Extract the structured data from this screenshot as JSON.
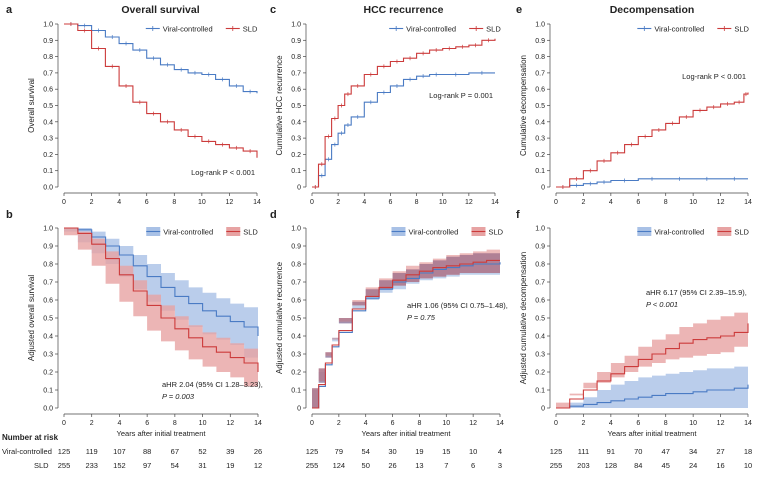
{
  "colors": {
    "viral": "#4a7bc4",
    "sld": "#cc3b3b",
    "viral_band": "#a9c1e6",
    "sld_band": "#e7a3a3",
    "overlap_band": "#8a5a7a"
  },
  "legend": {
    "viral": "Viral-controlled",
    "sld": "SLD"
  },
  "panels": {
    "a": {
      "letter": "a",
      "title": "Overall survival",
      "ylabel": "Overall survival",
      "stat": "Log-rank P < 0.001"
    },
    "c": {
      "letter": "c",
      "title": "HCC recurrence",
      "ylabel": "Cumulative HCC recurrence",
      "stat": "Log-rank P = 0.001"
    },
    "e": {
      "letter": "e",
      "title": "Decompensation",
      "ylabel": "Cumulative decompensation",
      "stat": "Log-rank P < 0.001"
    },
    "b": {
      "letter": "b",
      "ylabel": "Adjusted overall survival",
      "xlabel": "Years after initial treatment",
      "stat1": "aHR 2.04 (95% CI 1.28–3.23),",
      "stat2": "P = 0.003"
    },
    "d": {
      "letter": "d",
      "ylabel": "Adjusted cumulative recurrence",
      "xlabel": "Years after initial treatment",
      "stat1": "aHR 1.06 (95% CI 0.75–1.48),",
      "stat2": "P = 0.75"
    },
    "f": {
      "letter": "f",
      "ylabel": "Adjusted cumulative decompensation",
      "xlabel": "Years after initial treatment",
      "stat1": "aHR 6.17 (95% CI 2.39–15.9),",
      "stat2": "P < 0.001"
    }
  },
  "risk_table": {
    "title": "Number at risk",
    "row_labels": [
      "Viral-controlled",
      "SLD"
    ],
    "left": {
      "viral": [
        125,
        119,
        107,
        88,
        67,
        52,
        39,
        26
      ],
      "sld": [
        255,
        233,
        152,
        97,
        54,
        31,
        19,
        12
      ]
    },
    "middle": {
      "viral": [
        125,
        79,
        54,
        30,
        19,
        15,
        10,
        4
      ],
      "sld": [
        255,
        124,
        50,
        26,
        13,
        7,
        6,
        3
      ]
    },
    "right": {
      "viral": [
        125,
        111,
        91,
        70,
        47,
        34,
        27,
        18
      ],
      "sld": [
        255,
        203,
        128,
        84,
        45,
        24,
        16,
        10
      ]
    }
  },
  "chart_data": [
    {
      "panel": "a",
      "type": "line",
      "title": "Overall survival",
      "xlabel": "",
      "ylabel": "Overall survival",
      "xlim": [
        0,
        14
      ],
      "ylim": [
        0,
        1
      ],
      "x_ticks": [
        "0",
        "2",
        "4",
        "6",
        "8",
        "10",
        "12",
        "14"
      ],
      "y_ticks": [
        "0.0",
        "0.1",
        "0.2",
        "0.3",
        "0.4",
        "0.5",
        "0.6",
        "0.7",
        "0.8",
        "0.9",
        "1.0"
      ],
      "series": [
        {
          "name": "Viral-controlled",
          "x": [
            0,
            1,
            2,
            3,
            4,
            5,
            6,
            7,
            8,
            9,
            10,
            11,
            12,
            13,
            14
          ],
          "y": [
            1.0,
            0.99,
            0.96,
            0.92,
            0.88,
            0.84,
            0.79,
            0.75,
            0.72,
            0.7,
            0.69,
            0.66,
            0.62,
            0.585,
            0.575
          ]
        },
        {
          "name": "SLD",
          "x": [
            0,
            1,
            2,
            3,
            4,
            5,
            6,
            7,
            8,
            9,
            10,
            11,
            12,
            13,
            14
          ],
          "y": [
            1.0,
            0.96,
            0.85,
            0.74,
            0.62,
            0.52,
            0.45,
            0.4,
            0.35,
            0.31,
            0.28,
            0.26,
            0.24,
            0.22,
            0.18
          ]
        }
      ]
    },
    {
      "panel": "c",
      "type": "line",
      "title": "HCC recurrence",
      "xlabel": "",
      "ylabel": "Cumulative HCC recurrence",
      "xlim": [
        0,
        14
      ],
      "ylim": [
        0,
        1
      ],
      "x_ticks": [
        "0",
        "2",
        "4",
        "6",
        "8",
        "10",
        "12",
        "14"
      ],
      "y_ticks": [
        "0",
        "0.1",
        "0.2",
        "0.3",
        "0.4",
        "0.5",
        "0.6",
        "0.7",
        "0.8",
        "0.9",
        "1.0"
      ],
      "series": [
        {
          "name": "Viral-controlled",
          "x": [
            0,
            0.5,
            1,
            1.5,
            2,
            2.5,
            3,
            4,
            5,
            6,
            7,
            8,
            9,
            10,
            12,
            14
          ],
          "y": [
            0,
            0.07,
            0.17,
            0.26,
            0.33,
            0.38,
            0.43,
            0.52,
            0.58,
            0.62,
            0.66,
            0.68,
            0.69,
            0.69,
            0.7,
            0.7
          ]
        },
        {
          "name": "SLD",
          "x": [
            0,
            0.5,
            1,
            1.5,
            2,
            2.5,
            3,
            4,
            5,
            6,
            7,
            8,
            9,
            10,
            11,
            12,
            13,
            14
          ],
          "y": [
            0,
            0.14,
            0.31,
            0.42,
            0.5,
            0.57,
            0.62,
            0.69,
            0.74,
            0.77,
            0.79,
            0.82,
            0.84,
            0.85,
            0.86,
            0.87,
            0.9,
            0.91
          ]
        }
      ]
    },
    {
      "panel": "e",
      "type": "line",
      "title": "Decompensation",
      "xlabel": "",
      "ylabel": "Cumulative decompensation",
      "xlim": [
        0,
        14
      ],
      "ylim": [
        0,
        1
      ],
      "x_ticks": [
        "0",
        "2",
        "4",
        "6",
        "8",
        "10",
        "12",
        "14"
      ],
      "y_ticks": [
        "0",
        "0.1",
        "0.2",
        "0.3",
        "0.4",
        "0.5",
        "0.6",
        "0.7",
        "0.8",
        "0.9",
        "1.0"
      ],
      "series": [
        {
          "name": "Viral-controlled",
          "x": [
            0,
            1,
            2,
            3,
            4,
            6,
            8,
            10,
            12,
            14
          ],
          "y": [
            0,
            0.01,
            0.02,
            0.03,
            0.04,
            0.05,
            0.05,
            0.05,
            0.05,
            0.05
          ]
        },
        {
          "name": "SLD",
          "x": [
            0,
            1,
            2,
            3,
            4,
            5,
            6,
            7,
            8,
            9,
            10,
            11,
            12,
            13,
            13.7,
            14
          ],
          "y": [
            0,
            0.05,
            0.1,
            0.16,
            0.21,
            0.26,
            0.31,
            0.35,
            0.39,
            0.43,
            0.47,
            0.49,
            0.51,
            0.52,
            0.57,
            0.58
          ]
        }
      ]
    },
    {
      "panel": "b",
      "type": "area",
      "title": "",
      "xlabel": "Years after initial treatment",
      "ylabel": "Adjusted overall survival",
      "xlim": [
        0,
        14
      ],
      "ylim": [
        0,
        1
      ],
      "x_ticks": [
        "0",
        "2",
        "4",
        "6",
        "8",
        "10",
        "12",
        "14"
      ],
      "y_ticks": [
        "0.0",
        "0.1",
        "0.2",
        "0.3",
        "0.4",
        "0.5",
        "0.6",
        "0.7",
        "0.8",
        "0.9",
        "1.0"
      ],
      "series": [
        {
          "name": "Viral-controlled",
          "x": [
            0,
            1,
            2,
            3,
            4,
            5,
            6,
            7,
            8,
            9,
            10,
            11,
            12,
            13,
            14
          ],
          "y": [
            1.0,
            0.99,
            0.95,
            0.9,
            0.85,
            0.79,
            0.73,
            0.67,
            0.62,
            0.58,
            0.54,
            0.51,
            0.48,
            0.45,
            0.4
          ],
          "lower": [
            1.0,
            0.98,
            0.92,
            0.86,
            0.8,
            0.73,
            0.66,
            0.59,
            0.54,
            0.49,
            0.45,
            0.41,
            0.38,
            0.35,
            0.28
          ],
          "upper": [
            1.0,
            1.0,
            0.98,
            0.94,
            0.9,
            0.85,
            0.8,
            0.75,
            0.71,
            0.67,
            0.64,
            0.61,
            0.58,
            0.56,
            0.52
          ]
        },
        {
          "name": "SLD",
          "x": [
            0,
            1,
            2,
            3,
            4,
            5,
            6,
            7,
            8,
            9,
            10,
            11,
            12,
            13,
            14
          ],
          "y": [
            1.0,
            0.97,
            0.91,
            0.83,
            0.74,
            0.65,
            0.57,
            0.5,
            0.44,
            0.39,
            0.34,
            0.31,
            0.28,
            0.25,
            0.2
          ],
          "lower": [
            1.0,
            0.96,
            0.88,
            0.79,
            0.69,
            0.59,
            0.51,
            0.43,
            0.37,
            0.32,
            0.27,
            0.23,
            0.2,
            0.17,
            0.12
          ],
          "upper": [
            1.0,
            0.98,
            0.94,
            0.87,
            0.79,
            0.71,
            0.63,
            0.57,
            0.51,
            0.46,
            0.42,
            0.39,
            0.36,
            0.33,
            0.29
          ]
        }
      ]
    },
    {
      "panel": "d",
      "type": "area",
      "title": "",
      "xlabel": "Years after initial treatment",
      "ylabel": "Adjusted cumulative recurrence",
      "xlim": [
        0,
        14
      ],
      "ylim": [
        0,
        1
      ],
      "x_ticks": [
        "0",
        "2",
        "4",
        "6",
        "8",
        "10",
        "12",
        "14"
      ],
      "y_ticks": [
        "0",
        "0.1",
        "0.2",
        "0.3",
        "0.4",
        "0.5",
        "0.6",
        "0.7",
        "0.8",
        "0.9",
        "1.0"
      ],
      "series": [
        {
          "name": "Viral-controlled",
          "x": [
            0,
            0.5,
            1,
            1.5,
            2,
            3,
            4,
            5,
            6,
            7,
            8,
            9,
            10,
            11,
            12,
            13,
            14
          ],
          "y": [
            0,
            0.12,
            0.24,
            0.34,
            0.42,
            0.54,
            0.61,
            0.66,
            0.7,
            0.72,
            0.75,
            0.77,
            0.78,
            0.79,
            0.8,
            0.8,
            0.81
          ],
          "lower": [
            0,
            0.1,
            0.2,
            0.29,
            0.37,
            0.48,
            0.55,
            0.6,
            0.64,
            0.66,
            0.69,
            0.71,
            0.72,
            0.73,
            0.74,
            0.74,
            0.74
          ],
          "upper": [
            0,
            0.14,
            0.28,
            0.38,
            0.47,
            0.59,
            0.66,
            0.71,
            0.75,
            0.77,
            0.8,
            0.82,
            0.84,
            0.85,
            0.86,
            0.86,
            0.87
          ]
        },
        {
          "name": "SLD",
          "x": [
            0,
            0.5,
            1,
            1.5,
            2,
            3,
            4,
            5,
            6,
            7,
            8,
            9,
            10,
            11,
            12,
            13,
            14
          ],
          "y": [
            0,
            0.13,
            0.25,
            0.35,
            0.43,
            0.55,
            0.62,
            0.67,
            0.71,
            0.74,
            0.76,
            0.78,
            0.79,
            0.8,
            0.81,
            0.82,
            0.82
          ],
          "lower": [
            0,
            0.11,
            0.22,
            0.31,
            0.39,
            0.5,
            0.57,
            0.62,
            0.66,
            0.68,
            0.7,
            0.72,
            0.73,
            0.74,
            0.75,
            0.75,
            0.75
          ],
          "upper": [
            0,
            0.15,
            0.29,
            0.39,
            0.48,
            0.6,
            0.67,
            0.72,
            0.76,
            0.79,
            0.81,
            0.83,
            0.85,
            0.86,
            0.87,
            0.88,
            0.89
          ]
        }
      ]
    },
    {
      "panel": "f",
      "type": "area",
      "title": "",
      "xlabel": "Years after initial treatment",
      "ylabel": "Adjusted cumulative decompensation",
      "xlim": [
        0,
        14
      ],
      "ylim": [
        0,
        1
      ],
      "x_ticks": [
        "0",
        "2",
        "4",
        "6",
        "8",
        "10",
        "12",
        "14"
      ],
      "y_ticks": [
        "0",
        "0.1",
        "0.2",
        "0.3",
        "0.4",
        "0.5",
        "0.6",
        "0.7",
        "0.8",
        "0.9",
        "1.0"
      ],
      "series": [
        {
          "name": "Viral-controlled",
          "x": [
            0,
            1,
            2,
            3,
            4,
            5,
            6,
            7,
            8,
            9,
            10,
            11,
            12,
            13,
            14
          ],
          "y": [
            0,
            0.01,
            0.02,
            0.03,
            0.04,
            0.05,
            0.06,
            0.07,
            0.08,
            0.08,
            0.09,
            0.1,
            0.1,
            0.11,
            0.13
          ],
          "lower": [
            0,
            0.0,
            0.0,
            0.0,
            0.0,
            0.0,
            0.0,
            0.0,
            0.0,
            0.0,
            0.0,
            0.0,
            0.0,
            0.0,
            0.0
          ],
          "upper": [
            0,
            0.03,
            0.06,
            0.1,
            0.13,
            0.15,
            0.17,
            0.18,
            0.19,
            0.2,
            0.21,
            0.22,
            0.22,
            0.23,
            0.25
          ]
        },
        {
          "name": "SLD",
          "x": [
            0,
            1,
            2,
            3,
            4,
            5,
            6,
            7,
            8,
            9,
            10,
            11,
            12,
            13,
            14
          ],
          "y": [
            0,
            0.05,
            0.1,
            0.15,
            0.19,
            0.23,
            0.27,
            0.3,
            0.33,
            0.36,
            0.38,
            0.39,
            0.4,
            0.42,
            0.47
          ],
          "lower": [
            0,
            0.03,
            0.07,
            0.11,
            0.14,
            0.17,
            0.2,
            0.23,
            0.25,
            0.27,
            0.28,
            0.29,
            0.3,
            0.31,
            0.34
          ],
          "upper": [
            0,
            0.08,
            0.14,
            0.2,
            0.25,
            0.29,
            0.34,
            0.38,
            0.41,
            0.45,
            0.47,
            0.49,
            0.51,
            0.53,
            0.58
          ]
        }
      ]
    }
  ]
}
